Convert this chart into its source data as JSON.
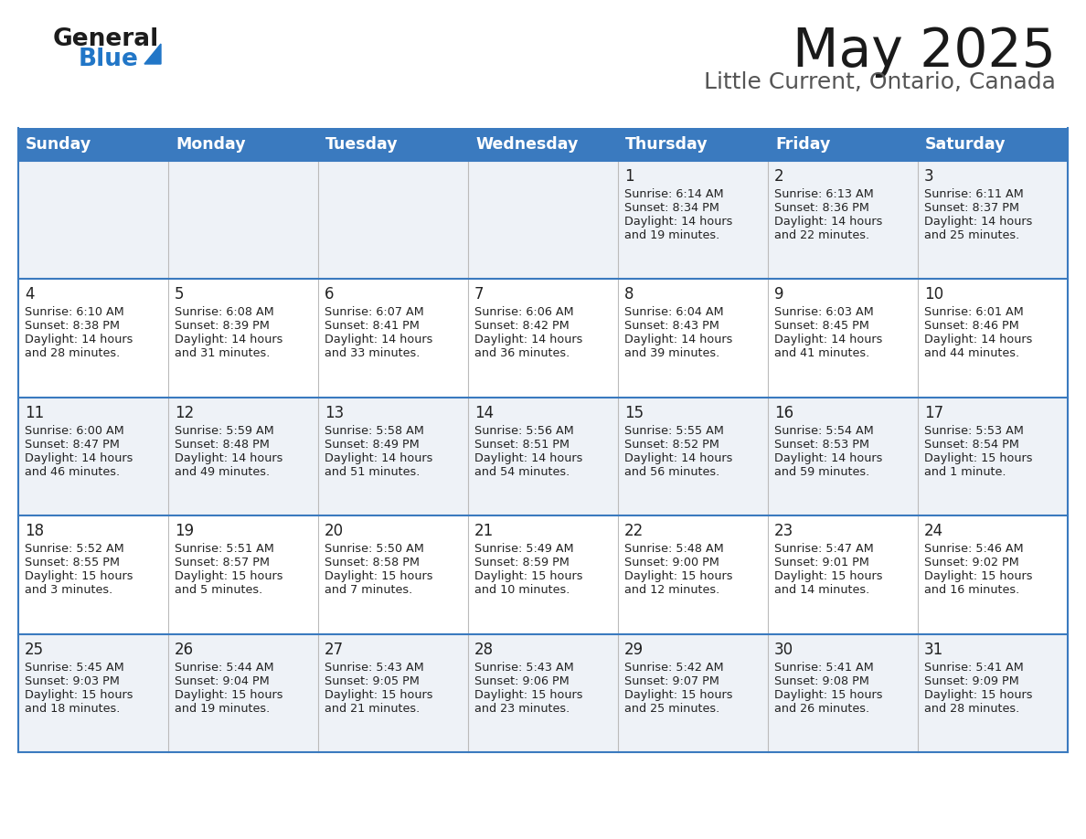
{
  "title": "May 2025",
  "subtitle": "Little Current, Ontario, Canada",
  "header_color": "#3a7abf",
  "header_text_color": "#ffffff",
  "cell_bg_even": "#eef2f7",
  "cell_bg_odd": "#ffffff",
  "border_color": "#3a7abf",
  "text_color": "#222222",
  "days_of_week": [
    "Sunday",
    "Monday",
    "Tuesday",
    "Wednesday",
    "Thursday",
    "Friday",
    "Saturday"
  ],
  "weeks": [
    [
      {
        "day": "",
        "sunrise": "",
        "sunset": "",
        "daylight": ""
      },
      {
        "day": "",
        "sunrise": "",
        "sunset": "",
        "daylight": ""
      },
      {
        "day": "",
        "sunrise": "",
        "sunset": "",
        "daylight": ""
      },
      {
        "day": "",
        "sunrise": "",
        "sunset": "",
        "daylight": ""
      },
      {
        "day": "1",
        "sunrise": "6:14 AM",
        "sunset": "8:34 PM",
        "daylight": "14 hours\nand 19 minutes."
      },
      {
        "day": "2",
        "sunrise": "6:13 AM",
        "sunset": "8:36 PM",
        "daylight": "14 hours\nand 22 minutes."
      },
      {
        "day": "3",
        "sunrise": "6:11 AM",
        "sunset": "8:37 PM",
        "daylight": "14 hours\nand 25 minutes."
      }
    ],
    [
      {
        "day": "4",
        "sunrise": "6:10 AM",
        "sunset": "8:38 PM",
        "daylight": "14 hours\nand 28 minutes."
      },
      {
        "day": "5",
        "sunrise": "6:08 AM",
        "sunset": "8:39 PM",
        "daylight": "14 hours\nand 31 minutes."
      },
      {
        "day": "6",
        "sunrise": "6:07 AM",
        "sunset": "8:41 PM",
        "daylight": "14 hours\nand 33 minutes."
      },
      {
        "day": "7",
        "sunrise": "6:06 AM",
        "sunset": "8:42 PM",
        "daylight": "14 hours\nand 36 minutes."
      },
      {
        "day": "8",
        "sunrise": "6:04 AM",
        "sunset": "8:43 PM",
        "daylight": "14 hours\nand 39 minutes."
      },
      {
        "day": "9",
        "sunrise": "6:03 AM",
        "sunset": "8:45 PM",
        "daylight": "14 hours\nand 41 minutes."
      },
      {
        "day": "10",
        "sunrise": "6:01 AM",
        "sunset": "8:46 PM",
        "daylight": "14 hours\nand 44 minutes."
      }
    ],
    [
      {
        "day": "11",
        "sunrise": "6:00 AM",
        "sunset": "8:47 PM",
        "daylight": "14 hours\nand 46 minutes."
      },
      {
        "day": "12",
        "sunrise": "5:59 AM",
        "sunset": "8:48 PM",
        "daylight": "14 hours\nand 49 minutes."
      },
      {
        "day": "13",
        "sunrise": "5:58 AM",
        "sunset": "8:49 PM",
        "daylight": "14 hours\nand 51 minutes."
      },
      {
        "day": "14",
        "sunrise": "5:56 AM",
        "sunset": "8:51 PM",
        "daylight": "14 hours\nand 54 minutes."
      },
      {
        "day": "15",
        "sunrise": "5:55 AM",
        "sunset": "8:52 PM",
        "daylight": "14 hours\nand 56 minutes."
      },
      {
        "day": "16",
        "sunrise": "5:54 AM",
        "sunset": "8:53 PM",
        "daylight": "14 hours\nand 59 minutes."
      },
      {
        "day": "17",
        "sunrise": "5:53 AM",
        "sunset": "8:54 PM",
        "daylight": "15 hours\nand 1 minute."
      }
    ],
    [
      {
        "day": "18",
        "sunrise": "5:52 AM",
        "sunset": "8:55 PM",
        "daylight": "15 hours\nand 3 minutes."
      },
      {
        "day": "19",
        "sunrise": "5:51 AM",
        "sunset": "8:57 PM",
        "daylight": "15 hours\nand 5 minutes."
      },
      {
        "day": "20",
        "sunrise": "5:50 AM",
        "sunset": "8:58 PM",
        "daylight": "15 hours\nand 7 minutes."
      },
      {
        "day": "21",
        "sunrise": "5:49 AM",
        "sunset": "8:59 PM",
        "daylight": "15 hours\nand 10 minutes."
      },
      {
        "day": "22",
        "sunrise": "5:48 AM",
        "sunset": "9:00 PM",
        "daylight": "15 hours\nand 12 minutes."
      },
      {
        "day": "23",
        "sunrise": "5:47 AM",
        "sunset": "9:01 PM",
        "daylight": "15 hours\nand 14 minutes."
      },
      {
        "day": "24",
        "sunrise": "5:46 AM",
        "sunset": "9:02 PM",
        "daylight": "15 hours\nand 16 minutes."
      }
    ],
    [
      {
        "day": "25",
        "sunrise": "5:45 AM",
        "sunset": "9:03 PM",
        "daylight": "15 hours\nand 18 minutes."
      },
      {
        "day": "26",
        "sunrise": "5:44 AM",
        "sunset": "9:04 PM",
        "daylight": "15 hours\nand 19 minutes."
      },
      {
        "day": "27",
        "sunrise": "5:43 AM",
        "sunset": "9:05 PM",
        "daylight": "15 hours\nand 21 minutes."
      },
      {
        "day": "28",
        "sunrise": "5:43 AM",
        "sunset": "9:06 PM",
        "daylight": "15 hours\nand 23 minutes."
      },
      {
        "day": "29",
        "sunrise": "5:42 AM",
        "sunset": "9:07 PM",
        "daylight": "15 hours\nand 25 minutes."
      },
      {
        "day": "30",
        "sunrise": "5:41 AM",
        "sunset": "9:08 PM",
        "daylight": "15 hours\nand 26 minutes."
      },
      {
        "day": "31",
        "sunrise": "5:41 AM",
        "sunset": "9:09 PM",
        "daylight": "15 hours\nand 28 minutes."
      }
    ]
  ]
}
